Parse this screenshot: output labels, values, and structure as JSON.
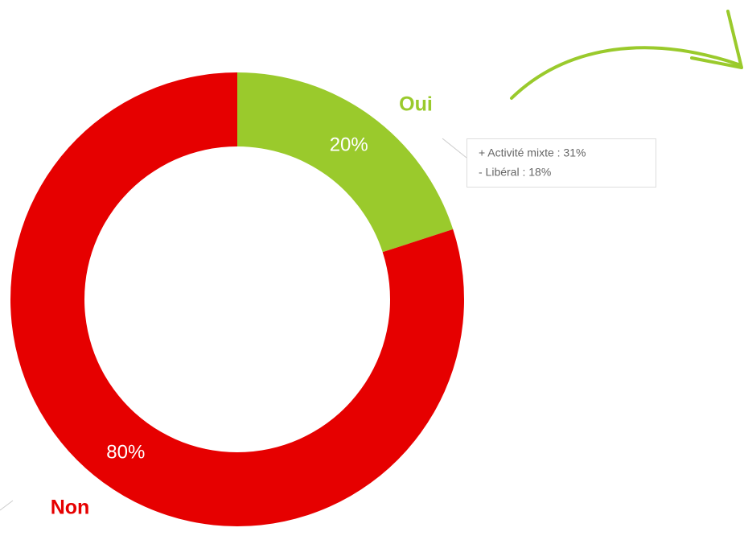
{
  "chart_data": {
    "type": "pie",
    "donut": true,
    "categories": [
      "Oui",
      "Non"
    ],
    "values": [
      20,
      80
    ],
    "value_labels": [
      "20%",
      "80%"
    ],
    "colors": [
      "#9aca2c",
      "#e60000"
    ],
    "annotation": [
      "+ Activité mixte : 31%",
      "- Libéral : 18%"
    ]
  }
}
